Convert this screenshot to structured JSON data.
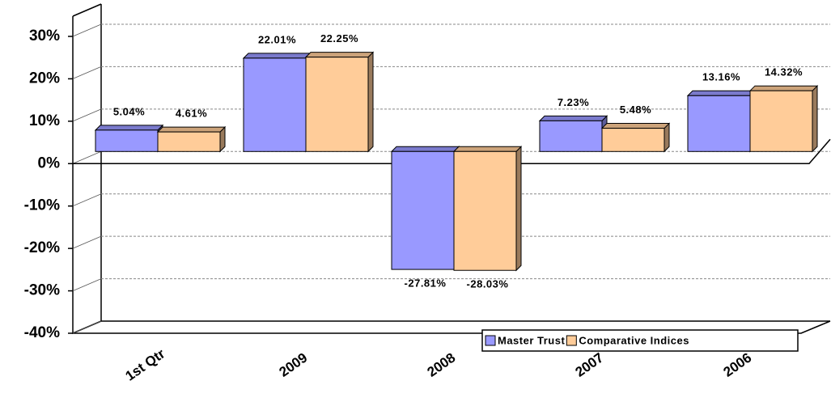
{
  "chart_data": {
    "type": "bar3d",
    "categories": [
      "1st Qtr",
      "2009",
      "2008",
      "2007",
      "2006"
    ],
    "series": [
      {
        "name": "Master Trust",
        "color": "#9999ff",
        "values": [
          5.04,
          22.01,
          -27.81,
          7.23,
          13.16
        ],
        "value_labels": [
          "5.04%",
          "22.01%",
          "-27.81%",
          "7.23%",
          "13.16%"
        ]
      },
      {
        "name": "Comparative Indices",
        "color": "#ffcc99",
        "values": [
          4.61,
          22.25,
          -28.03,
          5.48,
          14.32
        ],
        "value_labels": [
          "4.61%",
          "22.25%",
          "-28.03%",
          "5.48%",
          "14.32%"
        ]
      }
    ],
    "ylim": [
      -40,
      30
    ],
    "yticks": [
      {
        "value": 30,
        "label": "30%"
      },
      {
        "value": 20,
        "label": "20%"
      },
      {
        "value": 10,
        "label": "10%"
      },
      {
        "value": 0,
        "label": "0%"
      },
      {
        "value": -10,
        "label": "-10%"
      },
      {
        "value": -20,
        "label": "-20%"
      },
      {
        "value": -30,
        "label": "-30%"
      },
      {
        "value": -40,
        "label": "-40%"
      }
    ],
    "grid": true,
    "legend": "bottom-right"
  }
}
